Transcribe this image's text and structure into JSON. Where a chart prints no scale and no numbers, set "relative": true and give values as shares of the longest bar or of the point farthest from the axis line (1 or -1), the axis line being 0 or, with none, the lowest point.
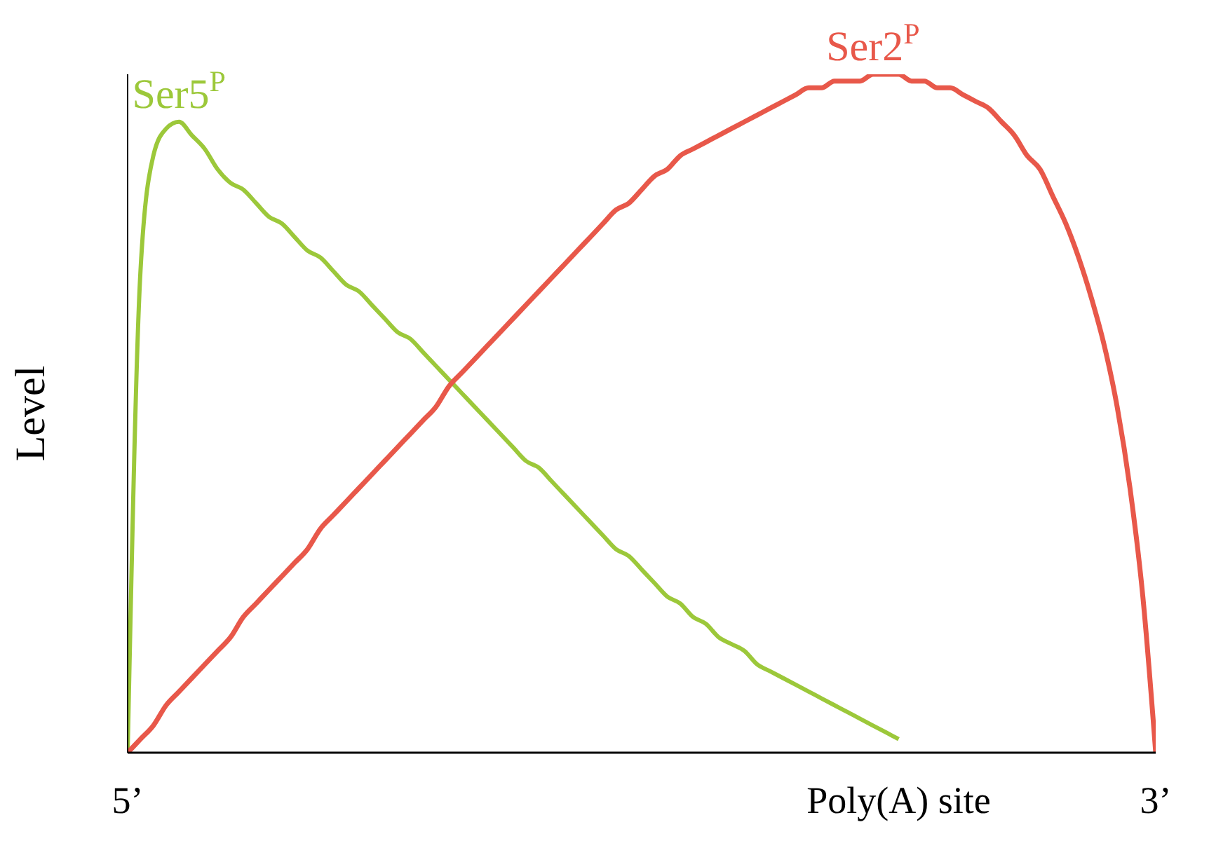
{
  "chart_data": {
    "type": "line",
    "relative": true,
    "ylabel": "Level",
    "legend": false,
    "marker": "none",
    "line_style": "solid",
    "categories": [
      "5’",
      null,
      null,
      null,
      null,
      null,
      null,
      null,
      null,
      null,
      null,
      null,
      null,
      null,
      null,
      null,
      null,
      null,
      null,
      null,
      null,
      null,
      null,
      null,
      null,
      null,
      null,
      null,
      null,
      null,
      null,
      null,
      null,
      null,
      null,
      null,
      null,
      null,
      null,
      null,
      null,
      null,
      null,
      null,
      null,
      null,
      null,
      null,
      null,
      null,
      null,
      null,
      null,
      null,
      null,
      null,
      null,
      null,
      null,
      null,
      "Poly(A) site",
      null,
      null,
      null,
      null,
      null,
      null,
      null,
      null,
      null,
      null,
      null,
      null,
      null,
      null,
      null,
      null,
      null,
      null,
      null,
      "3’"
    ],
    "series": [
      {
        "name": "Ser5$^{P}$",
        "color": "#9cc83a",
        "values": [
          0,
          0.71,
          0.88,
          0.92,
          0.93,
          0.91,
          0.89,
          0.86,
          0.84,
          0.83,
          0.81,
          0.79,
          0.78,
          0.76,
          0.74,
          0.73,
          0.71,
          0.69,
          0.68,
          0.66,
          0.64,
          0.62,
          0.61,
          0.59,
          0.57,
          0.55,
          0.53,
          0.51,
          0.49,
          0.47,
          0.45,
          0.43,
          0.42,
          0.4,
          0.38,
          0.36,
          0.34,
          0.32,
          0.3,
          0.29,
          0.27,
          0.25,
          0.23,
          0.22,
          0.2,
          0.19,
          0.17,
          0.16,
          0.15,
          0.13,
          0.12,
          0.11,
          0.1,
          0.09,
          0.08,
          0.07,
          0.06,
          0.05,
          0.04,
          0.03,
          0.02,
          null,
          null,
          null,
          null,
          null,
          null,
          null,
          null,
          null,
          null,
          null,
          null,
          null,
          null,
          null,
          null,
          null,
          null,
          null,
          null
        ]
      },
      {
        "name": "Ser2$^{P}$",
        "color": "#e8584a",
        "values": [
          0,
          0.02,
          0.04,
          0.07,
          0.09,
          0.11,
          0.13,
          0.15,
          0.17,
          0.2,
          0.22,
          0.24,
          0.26,
          0.28,
          0.3,
          0.33,
          0.35,
          0.37,
          0.39,
          0.41,
          0.43,
          0.45,
          0.47,
          0.49,
          0.51,
          0.54,
          0.56,
          0.58,
          0.6,
          0.62,
          0.64,
          0.66,
          0.68,
          0.7,
          0.72,
          0.74,
          0.76,
          0.78,
          0.8,
          0.81,
          0.83,
          0.85,
          0.86,
          0.88,
          0.89,
          0.9,
          0.91,
          0.92,
          0.93,
          0.94,
          0.95,
          0.96,
          0.97,
          0.98,
          0.98,
          0.99,
          0.99,
          0.99,
          1,
          1,
          1,
          0.99,
          0.99,
          0.98,
          0.98,
          0.97,
          0.96,
          0.95,
          0.93,
          0.91,
          0.88,
          0.86,
          0.82,
          0.78,
          0.73,
          0.67,
          0.6,
          0.51,
          0.39,
          0.23,
          0
        ]
      }
    ]
  }
}
